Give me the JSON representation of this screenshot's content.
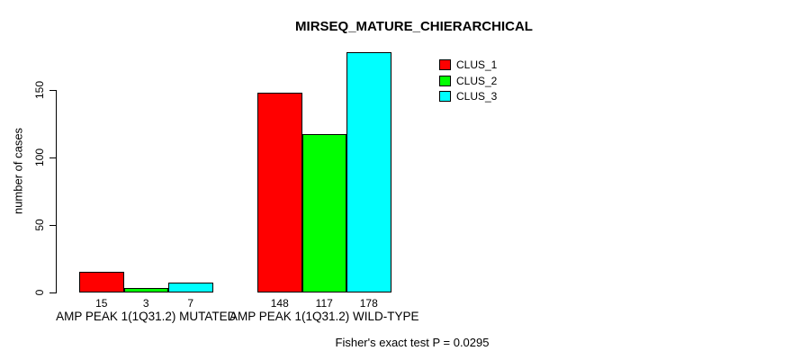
{
  "title": "MIRSEQ_MATURE_CHIERARCHICAL",
  "footer": "Fisher's exact test P = 0.0295",
  "colors": {
    "clus_1": "#ff0000",
    "clus_2": "#00ff00",
    "clus_3": "#00ffff",
    "axis": "#000000",
    "background": "#ffffff"
  },
  "chart_data": {
    "type": "bar",
    "title": "MIRSEQ_MATURE_CHIERARCHICAL",
    "xlabel": "",
    "ylabel": "number of cases",
    "categories": [
      "AMP PEAK 1(1Q31.2) MUTATED",
      "AMP PEAK 1(1Q31.2) WILD-TYPE"
    ],
    "series": [
      {
        "name": "CLUS_1",
        "color": "#ff0000",
        "values": [
          15,
          148
        ]
      },
      {
        "name": "CLUS_2",
        "color": "#00ff00",
        "values": [
          3,
          117
        ]
      },
      {
        "name": "CLUS_3",
        "color": "#00ffff",
        "values": [
          7,
          178
        ]
      }
    ],
    "bar_value_labels": [
      [
        "15",
        "3",
        "7"
      ],
      [
        "148",
        "117",
        "178"
      ]
    ],
    "yticks": [
      0,
      50,
      100,
      150
    ],
    "ylim": [
      0,
      183
    ],
    "grid": false,
    "legend_position": "top-right",
    "annotation": "Fisher's exact test P = 0.0295"
  }
}
